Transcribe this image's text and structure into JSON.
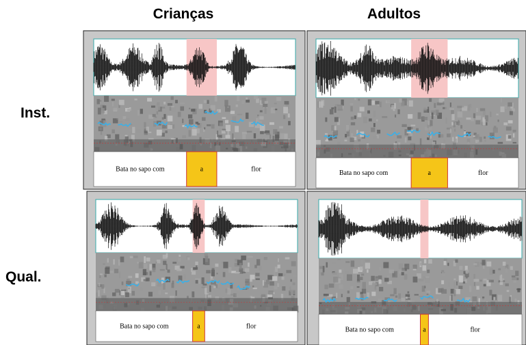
{
  "header": {
    "columns": [
      "Crianças",
      "Adultos"
    ]
  },
  "rows": [
    "Inst.",
    "Qual."
  ],
  "panels": [
    {
      "tier": [
        "Bata no sapo com",
        "a",
        "flor"
      ]
    },
    {
      "tier": [
        "Bata no sapo com",
        "a",
        "flor"
      ]
    },
    {
      "tier": [
        "Bata no sapo com",
        "a",
        "flor"
      ]
    },
    {
      "tier": [
        "Bata no sapo com",
        "a",
        "flor"
      ]
    }
  ]
}
